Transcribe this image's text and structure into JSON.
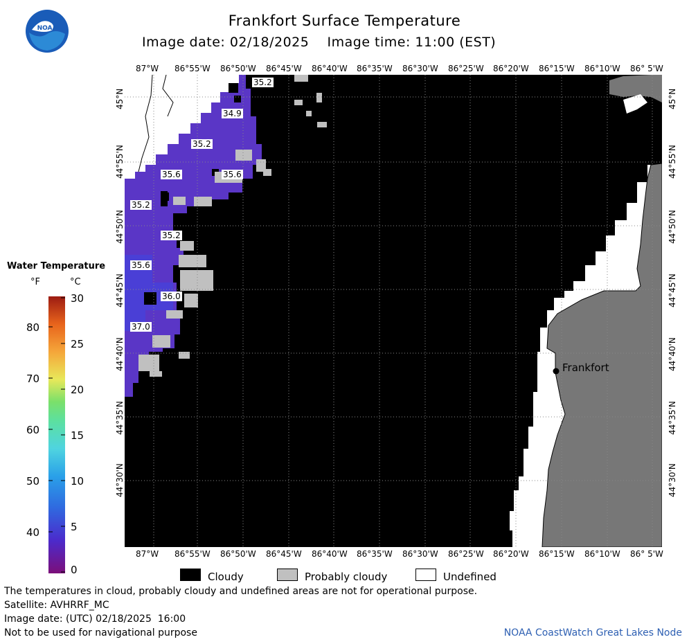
{
  "header": {
    "title": "Frankfort Surface Temperature",
    "image_date": "Image date: 02/18/2025",
    "image_time": "Image time: 11:00 (EST)"
  },
  "logo": {
    "text": "NOAA",
    "icon": "noaa-logo-icon"
  },
  "map": {
    "lon_ticks": [
      "87°W",
      "86°55'W",
      "86°50'W",
      "86°45'W",
      "86°40'W",
      "86°35'W",
      "86°30'W",
      "86°25'W",
      "86°20'W",
      "86°15'W",
      "86°10'W",
      "86° 5'W"
    ],
    "lat_ticks": [
      "45°N",
      "44°55'N",
      "44°50'N",
      "44°45'N",
      "44°40'N",
      "44°35'N",
      "44°30'N"
    ],
    "city": "Frankfort",
    "temperature_labels": [
      "35.2",
      "34.9",
      "35.2",
      "35.6",
      "35.6",
      "35.2",
      "35.2",
      "35.6",
      "36.0",
      "37.0"
    ]
  },
  "legend": {
    "title": "Water Temperature",
    "unit_f": "°F",
    "unit_c": "°C",
    "f_ticks": [
      "80",
      "70",
      "60",
      "50",
      "40"
    ],
    "c_ticks": [
      "30",
      "25",
      "20",
      "15",
      "10",
      "5",
      "0"
    ],
    "colors": [
      "#7b0f7a",
      "#4b2bcc",
      "#2f6be0",
      "#2aa0e8",
      "#4fd4e0",
      "#5ce0a0",
      "#7be06a",
      "#e8e85a",
      "#f5a63a",
      "#e8641c",
      "#c3321b",
      "#9c1b12"
    ]
  },
  "key": {
    "cloudy": "Cloudy",
    "probably_cloudy": "Probably cloudy",
    "undefined": "Undefined"
  },
  "footer": {
    "line1": "The temperatures in cloud, probably cloudy and undefined areas are not for operational purpose.",
    "line2": "Satellite: AVHRRF_MC",
    "line3": "Image date: (UTC) 02/18/2025  16:00",
    "line4": "Not to be used for navigational purpose",
    "credit": "NOAA CoastWatch Great Lakes Node"
  }
}
